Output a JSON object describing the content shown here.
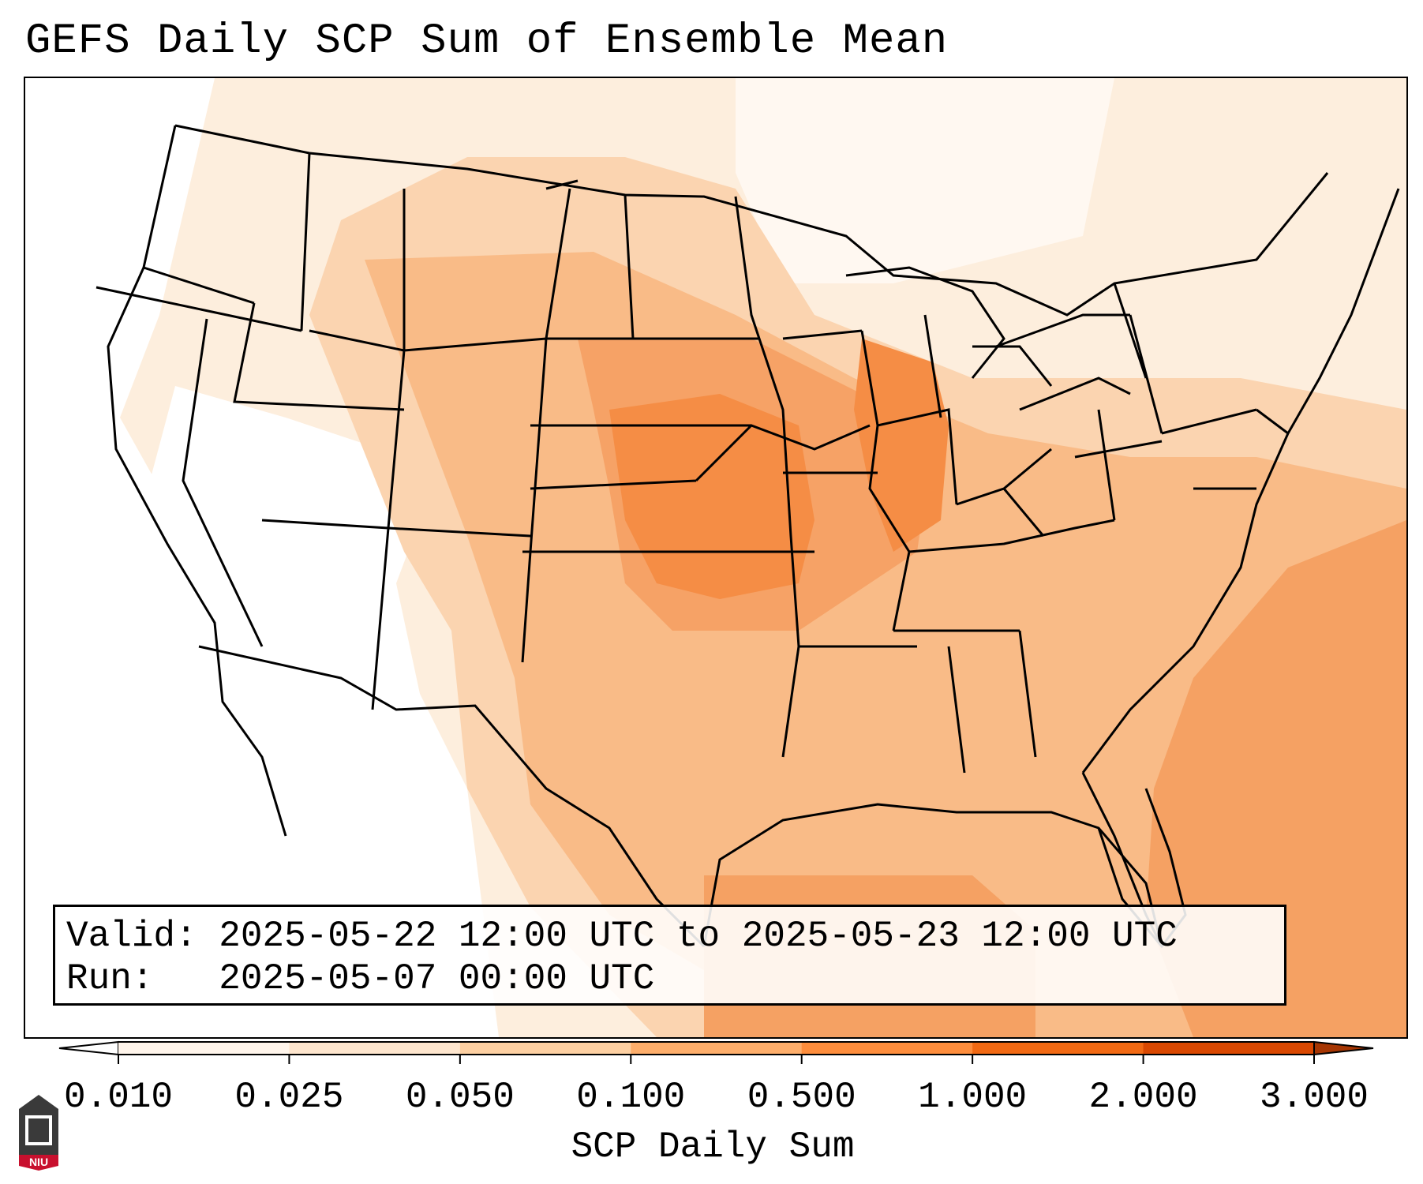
{
  "title": "GEFS Daily SCP Sum of Ensemble Mean",
  "info": {
    "valid_label": "Valid:",
    "valid_value": "2025-05-22 12:00 UTC to 2025-05-23 12:00 UTC",
    "run_label": "Run:",
    "run_value": "2025-05-07 00:00 UTC"
  },
  "colorbar": {
    "label": "SCP Daily Sum",
    "levels": [
      "0.010",
      "0.025",
      "0.050",
      "0.100",
      "0.500",
      "1.000",
      "2.000",
      "3.000"
    ],
    "colors": [
      "#fff5eb",
      "#fee6ce",
      "#fdd0a2",
      "#fdae6b",
      "#fd8d3c",
      "#f16913",
      "#d94801",
      "#a63603"
    ],
    "extend": "both"
  },
  "map": {
    "region": "Continental United States",
    "field": "SCP daily sum",
    "shading_colors": {
      "none": "#ffffff",
      "very_low": "#fff5eb",
      "low": "#fde8d3",
      "moderate": "#fbc496",
      "high": "#f6a66b",
      "highest": "#f58d45"
    },
    "boundary_color": "#000000"
  },
  "logo": {
    "text": "NIU",
    "color": "#c8102e"
  }
}
